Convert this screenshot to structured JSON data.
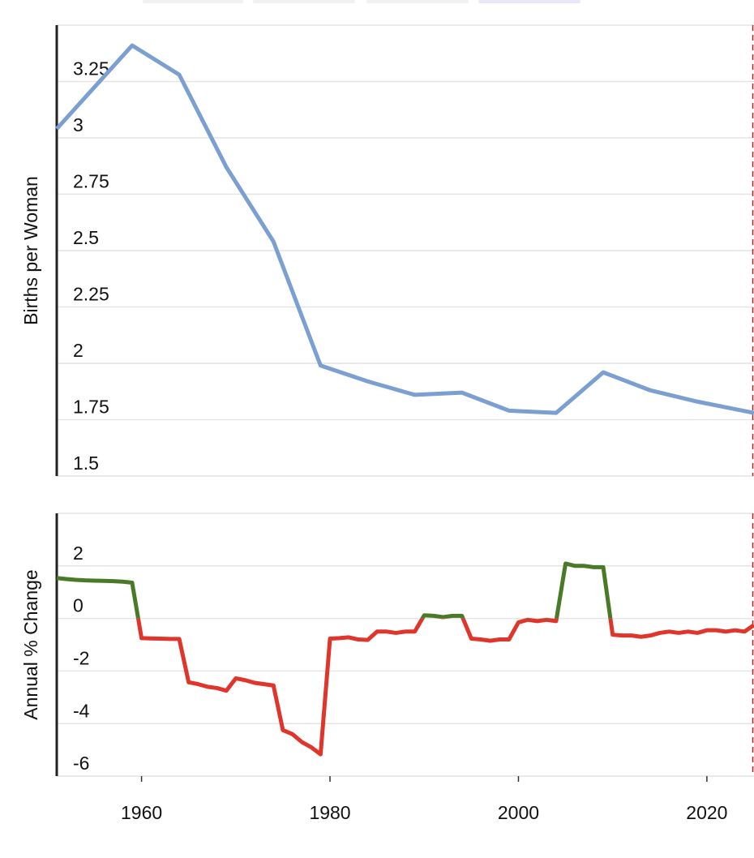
{
  "chart_data": [
    {
      "type": "line",
      "ylabel": "Births per Woman",
      "x": [
        1951,
        1959,
        1964,
        1969,
        1974,
        1979,
        1984,
        1989,
        1994,
        1999,
        2004,
        2009,
        2014,
        2019,
        2025
      ],
      "series": [
        {
          "color": "#7b9fd1",
          "values": [
            3.04,
            3.41,
            3.28,
            2.87,
            2.54,
            1.99,
            1.92,
            1.86,
            1.87,
            1.79,
            1.78,
            1.96,
            1.88,
            1.83,
            1.78
          ]
        }
      ],
      "xlim": [
        1951,
        2025
      ],
      "ylim": [
        1.5,
        3.5
      ],
      "yticks": [
        1.5,
        1.75,
        2,
        2.25,
        2.5,
        2.75,
        3,
        3.25
      ],
      "grid": true,
      "vline": 2025,
      "vline_color": "#b22222"
    },
    {
      "type": "signed-line",
      "ylabel": "Annual % Change",
      "x": [
        1951,
        1952,
        1953,
        1954,
        1955,
        1956,
        1957,
        1958,
        1959,
        1960,
        1961,
        1962,
        1963,
        1964,
        1965,
        1966,
        1967,
        1968,
        1969,
        1970,
        1971,
        1972,
        1973,
        1974,
        1975,
        1976,
        1977,
        1978,
        1979,
        1980,
        1981,
        1982,
        1983,
        1984,
        1985,
        1986,
        1987,
        1988,
        1989,
        1990,
        1991,
        1992,
        1993,
        1994,
        1995,
        1996,
        1997,
        1998,
        1999,
        2000,
        2001,
        2002,
        2003,
        2004,
        2005,
        2006,
        2007,
        2008,
        2009,
        2010,
        2011,
        2012,
        2013,
        2014,
        2015,
        2016,
        2017,
        2018,
        2019,
        2020,
        2021,
        2022,
        2023,
        2024,
        2025
      ],
      "series": [
        {
          "color": "#4a7a27",
          "negative_color": "#e0352b",
          "values": [
            1.54,
            1.5,
            1.47,
            1.45,
            1.44,
            1.43,
            1.42,
            1.4,
            1.36,
            -0.75,
            -0.76,
            -0.77,
            -0.78,
            -0.78,
            -2.43,
            -2.5,
            -2.6,
            -2.65,
            -2.75,
            -2.28,
            -2.35,
            -2.45,
            -2.5,
            -2.55,
            -4.25,
            -4.4,
            -4.7,
            -4.9,
            -5.17,
            -0.77,
            -0.75,
            -0.72,
            -0.8,
            -0.82,
            -0.5,
            -0.5,
            -0.55,
            -0.5,
            -0.5,
            0.12,
            0.1,
            0.05,
            0.1,
            0.1,
            -0.77,
            -0.8,
            -0.85,
            -0.8,
            -0.8,
            -0.15,
            -0.05,
            -0.1,
            -0.05,
            -0.1,
            2.09,
            2,
            2,
            1.95,
            1.95,
            -0.62,
            -0.65,
            -0.65,
            -0.7,
            -0.65,
            -0.55,
            -0.5,
            -0.55,
            -0.5,
            -0.55,
            -0.45,
            -0.45,
            -0.5,
            -0.45,
            -0.5,
            -0.25
          ]
        }
      ],
      "xlim": [
        1951,
        2025
      ],
      "xticks": [
        1960,
        1980,
        2000,
        2020
      ],
      "ylim": [
        -6,
        4
      ],
      "yticks": [
        -6,
        -4,
        -2,
        0,
        2
      ],
      "grid": true,
      "vline": 2025,
      "vline_color": "#b22222"
    }
  ]
}
